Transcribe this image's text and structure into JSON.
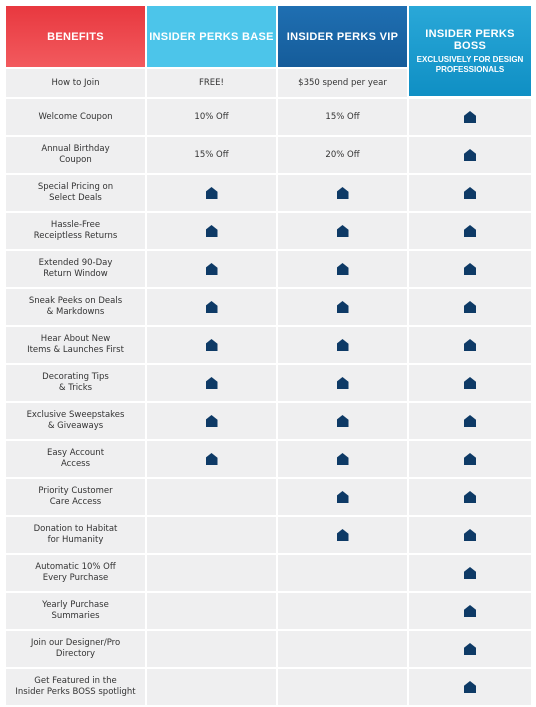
{
  "headers": {
    "benefits": "BENEFITS",
    "base": "INSIDER PERKS BASE",
    "vip": "INSIDER PERKS VIP",
    "boss": "INSIDER PERKS BOSS",
    "boss_sub": "EXCLUSIVELY FOR DESIGN PROFESSIONALS"
  },
  "icon": "house-icon",
  "colors": {
    "benefits_header": "#ed4449",
    "base_header": "#4cc5ea",
    "vip_header": "#1a66a8",
    "boss_header": "#1a9ccf",
    "check_icon": "#0e3a66",
    "row_bg": "#efeff0"
  },
  "rows": [
    {
      "label": "How to Join",
      "base": "FREE!",
      "vip": "$350 spend per year",
      "boss": ""
    },
    {
      "label": "Welcome Coupon",
      "base": "10% Off",
      "vip": "15% Off",
      "boss": "check"
    },
    {
      "label": "Annual Birthday\nCoupon",
      "base": "15% Off",
      "vip": "20% Off",
      "boss": "check"
    },
    {
      "label": "Special Pricing on\nSelect Deals",
      "base": "check",
      "vip": "check",
      "boss": "check"
    },
    {
      "label": "Hassle-Free\nReceiptless Returns",
      "base": "check",
      "vip": "check",
      "boss": "check"
    },
    {
      "label": "Extended 90-Day\nReturn Window",
      "base": "check",
      "vip": "check",
      "boss": "check"
    },
    {
      "label": "Sneak Peeks on Deals\n& Markdowns",
      "base": "check",
      "vip": "check",
      "boss": "check"
    },
    {
      "label": "Hear About New\nItems & Launches First",
      "base": "check",
      "vip": "check",
      "boss": "check"
    },
    {
      "label": "Decorating Tips\n& Tricks",
      "base": "check",
      "vip": "check",
      "boss": "check"
    },
    {
      "label": "Exclusive Sweepstakes\n& Giveaways",
      "base": "check",
      "vip": "check",
      "boss": "check"
    },
    {
      "label": "Easy Account\nAccess",
      "base": "check",
      "vip": "check",
      "boss": "check"
    },
    {
      "label": "Priority Customer\nCare Access",
      "base": "",
      "vip": "check",
      "boss": "check"
    },
    {
      "label": "Donation to Habitat\nfor Humanity",
      "base": "",
      "vip": "check",
      "boss": "check"
    },
    {
      "label": "Automatic 10% Off\nEvery Purchase",
      "base": "",
      "vip": "",
      "boss": "check"
    },
    {
      "label": "Yearly Purchase\nSummaries",
      "base": "",
      "vip": "",
      "boss": "check"
    },
    {
      "label": "Join our Designer/Pro\nDirectory",
      "base": "",
      "vip": "",
      "boss": "check"
    },
    {
      "label": "Get Featured in the\nInsider Perks BOSS spotlight",
      "base": "",
      "vip": "",
      "boss": "check"
    }
  ]
}
